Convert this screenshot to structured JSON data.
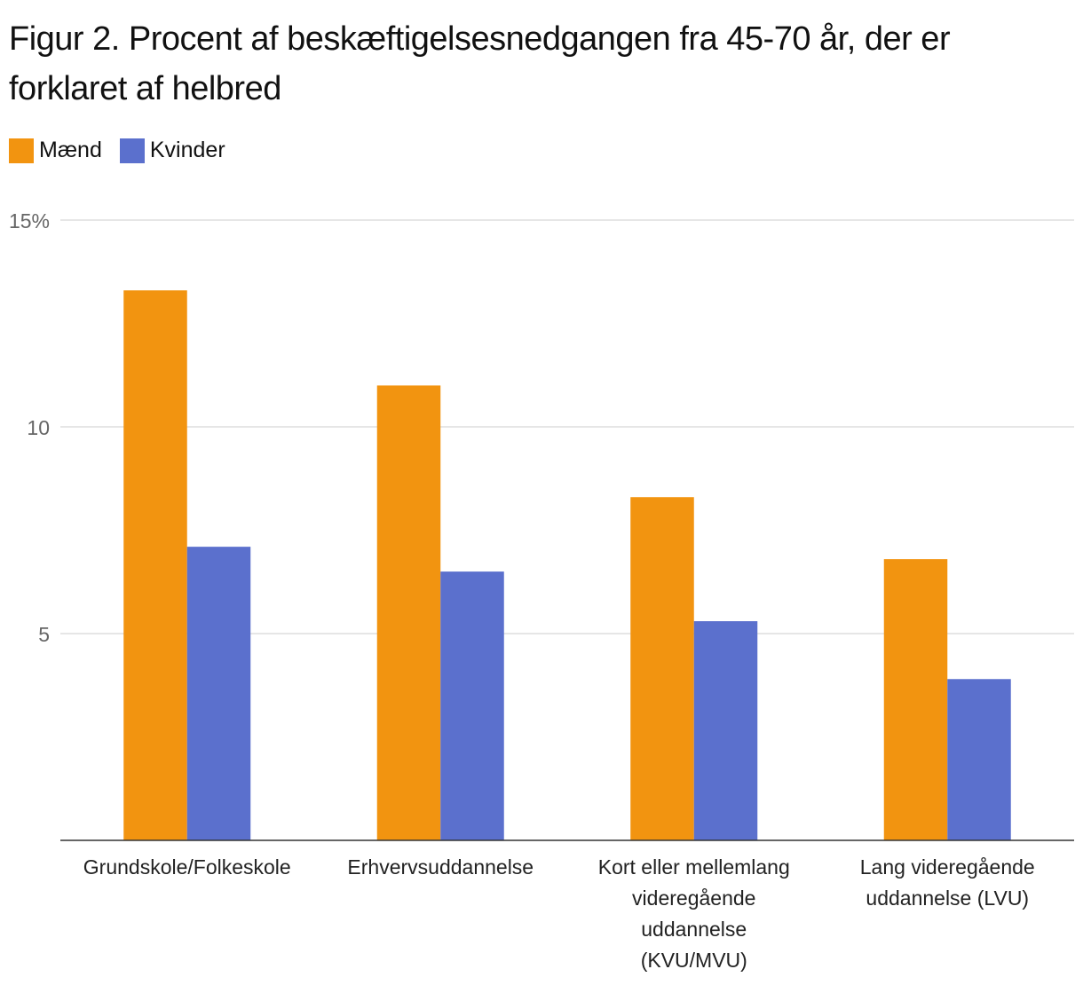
{
  "chart_data": {
    "type": "bar",
    "title": "Figur 2. Procent af beskæftigelsesnedgangen fra 45-70 år, der er forklaret af helbred",
    "categories": [
      "Grundskole/Folkeskole",
      "Erhvervsuddannelse",
      "Kort eller mellemlang videregående uddannelse (KVU/MVU)",
      "Lang videregående uddannelse (LVU)"
    ],
    "category_lines": [
      [
        "Grundskole/Folkeskole"
      ],
      [
        "Erhvervsuddannelse"
      ],
      [
        "Kort eller mellemlang",
        "videregående",
        "uddannelse",
        "(KVU/MVU)"
      ],
      [
        "Lang videregående",
        "uddannelse (LVU)"
      ]
    ],
    "series": [
      {
        "name": "Mænd",
        "color": "#f29410",
        "values": [
          13.3,
          11.0,
          8.3,
          6.8
        ]
      },
      {
        "name": "Kvinder",
        "color": "#5b70cd",
        "values": [
          7.1,
          6.5,
          5.3,
          3.9
        ]
      }
    ],
    "yticks": [
      {
        "value": 15,
        "label": "15%"
      },
      {
        "value": 10,
        "label": "10"
      },
      {
        "value": 5,
        "label": "5"
      }
    ],
    "ylim": [
      0,
      15
    ],
    "xlabel": "",
    "ylabel": "",
    "grid": true,
    "legend_position": "top-left"
  }
}
